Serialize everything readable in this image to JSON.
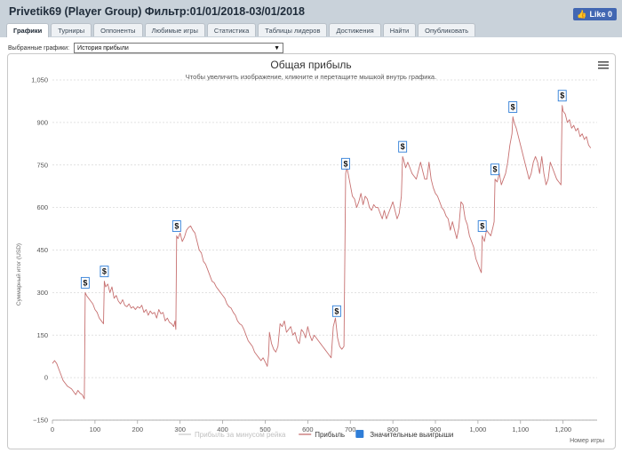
{
  "header": {
    "title": "Privetik69 (Player Group) Фильтр:01/01/2018-03/01/2018",
    "like_label": "Like 0"
  },
  "tabs": [
    {
      "label": "Графики",
      "active": true
    },
    {
      "label": "Турниры"
    },
    {
      "label": "Оппоненты"
    },
    {
      "label": "Любимые игры"
    },
    {
      "label": "Статистика"
    },
    {
      "label": "Таблицы лидеров"
    },
    {
      "label": "Достижения"
    },
    {
      "label": "Найти"
    },
    {
      "label": "Опубликовать"
    }
  ],
  "selector": {
    "label": "Выбранные графики:",
    "value": "История прибыли"
  },
  "menu_icon": "hamburger-icon",
  "chart_data": {
    "type": "line",
    "title": "Общая прибыль",
    "subtitle": "Чтобы увеличить изображение, кликните и перетащите мышкой внутрь графика.",
    "xlabel": "Номер игры",
    "ylabel": "Суммарный итог (USD)",
    "xlim": [
      0,
      1280
    ],
    "ylim": [
      -150,
      1050
    ],
    "x_ticks": [
      0,
      100,
      200,
      300,
      400,
      500,
      600,
      700,
      800,
      900,
      1000,
      1100,
      1200
    ],
    "y_ticks": [
      -150,
      0,
      150,
      300,
      450,
      600,
      750,
      900,
      1050
    ],
    "y_tick_labels": [
      "−150",
      "0",
      "150",
      "300",
      "450",
      "600",
      "750",
      "900",
      "1,050"
    ],
    "grid": "horizontal dashed",
    "legend": [
      {
        "name": "Прибыль за минусом рейка",
        "color": "#cccccc",
        "type": "line",
        "hidden": true
      },
      {
        "name": "Прибыль",
        "color": "#c77171",
        "type": "line"
      },
      {
        "name": "Значительные выигрыши",
        "color": "#2f7ed8",
        "type": "marker"
      }
    ],
    "series": [
      {
        "name": "Прибыль",
        "color": "#c77171",
        "points": [
          [
            0,
            50
          ],
          [
            5,
            60
          ],
          [
            10,
            50
          ],
          [
            15,
            30
          ],
          [
            20,
            10
          ],
          [
            25,
            -10
          ],
          [
            30,
            -20
          ],
          [
            35,
            -30
          ],
          [
            40,
            -35
          ],
          [
            45,
            -40
          ],
          [
            50,
            -50
          ],
          [
            55,
            -60
          ],
          [
            60,
            -45
          ],
          [
            65,
            -55
          ],
          [
            70,
            -60
          ],
          [
            75,
            -75
          ],
          [
            77,
            300
          ],
          [
            80,
            290
          ],
          [
            85,
            280
          ],
          [
            90,
            270
          ],
          [
            95,
            260
          ],
          [
            100,
            240
          ],
          [
            105,
            230
          ],
          [
            110,
            210
          ],
          [
            115,
            200
          ],
          [
            120,
            190
          ],
          [
            122,
            340
          ],
          [
            125,
            320
          ],
          [
            130,
            330
          ],
          [
            135,
            300
          ],
          [
            140,
            320
          ],
          [
            145,
            280
          ],
          [
            150,
            290
          ],
          [
            155,
            270
          ],
          [
            160,
            260
          ],
          [
            165,
            275
          ],
          [
            170,
            255
          ],
          [
            175,
            250
          ],
          [
            180,
            260
          ],
          [
            185,
            245
          ],
          [
            190,
            250
          ],
          [
            195,
            240
          ],
          [
            200,
            250
          ],
          [
            205,
            245
          ],
          [
            210,
            255
          ],
          [
            215,
            230
          ],
          [
            220,
            240
          ],
          [
            225,
            220
          ],
          [
            230,
            235
          ],
          [
            235,
            225
          ],
          [
            240,
            230
          ],
          [
            245,
            210
          ],
          [
            250,
            240
          ],
          [
            255,
            225
          ],
          [
            260,
            230
          ],
          [
            265,
            200
          ],
          [
            270,
            210
          ],
          [
            275,
            195
          ],
          [
            280,
            190
          ],
          [
            285,
            180
          ],
          [
            288,
            200
          ],
          [
            290,
            170
          ],
          [
            292,
            500
          ],
          [
            295,
            490
          ],
          [
            300,
            510
          ],
          [
            305,
            480
          ],
          [
            310,
            495
          ],
          [
            315,
            520
          ],
          [
            320,
            530
          ],
          [
            325,
            535
          ],
          [
            330,
            520
          ],
          [
            335,
            510
          ],
          [
            340,
            480
          ],
          [
            345,
            450
          ],
          [
            350,
            440
          ],
          [
            355,
            410
          ],
          [
            360,
            400
          ],
          [
            365,
            380
          ],
          [
            370,
            360
          ],
          [
            375,
            340
          ],
          [
            380,
            335
          ],
          [
            385,
            320
          ],
          [
            390,
            310
          ],
          [
            395,
            300
          ],
          [
            400,
            290
          ],
          [
            405,
            280
          ],
          [
            410,
            260
          ],
          [
            415,
            250
          ],
          [
            420,
            245
          ],
          [
            425,
            230
          ],
          [
            430,
            220
          ],
          [
            435,
            200
          ],
          [
            440,
            190
          ],
          [
            445,
            185
          ],
          [
            450,
            170
          ],
          [
            455,
            150
          ],
          [
            460,
            130
          ],
          [
            465,
            120
          ],
          [
            470,
            110
          ],
          [
            475,
            90
          ],
          [
            480,
            80
          ],
          [
            485,
            70
          ],
          [
            490,
            60
          ],
          [
            495,
            70
          ],
          [
            500,
            55
          ],
          [
            505,
            40
          ],
          [
            508,
            80
          ],
          [
            510,
            160
          ],
          [
            515,
            120
          ],
          [
            520,
            100
          ],
          [
            525,
            90
          ],
          [
            530,
            110
          ],
          [
            535,
            190
          ],
          [
            540,
            180
          ],
          [
            545,
            200
          ],
          [
            550,
            160
          ],
          [
            555,
            170
          ],
          [
            560,
            180
          ],
          [
            565,
            150
          ],
          [
            570,
            160
          ],
          [
            575,
            130
          ],
          [
            580,
            120
          ],
          [
            585,
            170
          ],
          [
            590,
            160
          ],
          [
            595,
            140
          ],
          [
            600,
            180
          ],
          [
            605,
            150
          ],
          [
            610,
            130
          ],
          [
            615,
            150
          ],
          [
            620,
            140
          ],
          [
            625,
            130
          ],
          [
            630,
            120
          ],
          [
            635,
            110
          ],
          [
            640,
            100
          ],
          [
            645,
            90
          ],
          [
            650,
            80
          ],
          [
            655,
            70
          ],
          [
            660,
            180
          ],
          [
            665,
            210
          ],
          [
            670,
            140
          ],
          [
            675,
            110
          ],
          [
            680,
            100
          ],
          [
            685,
            110
          ],
          [
            689,
            720
          ],
          [
            692,
            740
          ],
          [
            695,
            720
          ],
          [
            700,
            680
          ],
          [
            705,
            640
          ],
          [
            710,
            630
          ],
          [
            715,
            600
          ],
          [
            720,
            620
          ],
          [
            725,
            650
          ],
          [
            730,
            610
          ],
          [
            735,
            640
          ],
          [
            740,
            630
          ],
          [
            745,
            600
          ],
          [
            750,
            590
          ],
          [
            755,
            610
          ],
          [
            760,
            600
          ],
          [
            765,
            600
          ],
          [
            770,
            580
          ],
          [
            775,
            560
          ],
          [
            780,
            590
          ],
          [
            785,
            560
          ],
          [
            790,
            580
          ],
          [
            795,
            600
          ],
          [
            800,
            620
          ],
          [
            805,
            590
          ],
          [
            810,
            560
          ],
          [
            815,
            580
          ],
          [
            820,
            640
          ],
          [
            823,
            780
          ],
          [
            825,
            770
          ],
          [
            830,
            740
          ],
          [
            835,
            760
          ],
          [
            840,
            740
          ],
          [
            845,
            720
          ],
          [
            850,
            710
          ],
          [
            855,
            700
          ],
          [
            860,
            730
          ],
          [
            865,
            760
          ],
          [
            870,
            730
          ],
          [
            875,
            700
          ],
          [
            880,
            700
          ],
          [
            885,
            760
          ],
          [
            890,
            700
          ],
          [
            895,
            670
          ],
          [
            900,
            650
          ],
          [
            905,
            640
          ],
          [
            910,
            620
          ],
          [
            915,
            600
          ],
          [
            920,
            590
          ],
          [
            925,
            570
          ],
          [
            930,
            560
          ],
          [
            935,
            520
          ],
          [
            940,
            550
          ],
          [
            945,
            520
          ],
          [
            950,
            490
          ],
          [
            955,
            530
          ],
          [
            960,
            620
          ],
          [
            965,
            610
          ],
          [
            970,
            560
          ],
          [
            975,
            540
          ],
          [
            980,
            500
          ],
          [
            985,
            480
          ],
          [
            990,
            460
          ],
          [
            995,
            420
          ],
          [
            1000,
            400
          ],
          [
            1005,
            380
          ],
          [
            1008,
            370
          ],
          [
            1010,
            500
          ],
          [
            1015,
            480
          ],
          [
            1020,
            520
          ],
          [
            1025,
            510
          ],
          [
            1030,
            500
          ],
          [
            1035,
            530
          ],
          [
            1038,
            550
          ],
          [
            1040,
            700
          ],
          [
            1045,
            690
          ],
          [
            1050,
            720
          ],
          [
            1055,
            680
          ],
          [
            1060,
            700
          ],
          [
            1065,
            720
          ],
          [
            1070,
            760
          ],
          [
            1075,
            820
          ],
          [
            1080,
            860
          ],
          [
            1082,
            920
          ],
          [
            1085,
            900
          ],
          [
            1090,
            880
          ],
          [
            1095,
            850
          ],
          [
            1100,
            820
          ],
          [
            1105,
            790
          ],
          [
            1110,
            760
          ],
          [
            1115,
            730
          ],
          [
            1120,
            700
          ],
          [
            1125,
            720
          ],
          [
            1130,
            760
          ],
          [
            1135,
            780
          ],
          [
            1140,
            760
          ],
          [
            1145,
            720
          ],
          [
            1150,
            780
          ],
          [
            1155,
            720
          ],
          [
            1160,
            680
          ],
          [
            1165,
            700
          ],
          [
            1170,
            760
          ],
          [
            1175,
            740
          ],
          [
            1180,
            720
          ],
          [
            1185,
            700
          ],
          [
            1190,
            690
          ],
          [
            1195,
            680
          ],
          [
            1198,
            960
          ],
          [
            1200,
            940
          ],
          [
            1205,
            930
          ],
          [
            1210,
            900
          ],
          [
            1215,
            910
          ],
          [
            1220,
            880
          ],
          [
            1225,
            890
          ],
          [
            1230,
            870
          ],
          [
            1235,
            880
          ],
          [
            1240,
            850
          ],
          [
            1245,
            860
          ],
          [
            1250,
            840
          ],
          [
            1255,
            850
          ],
          [
            1260,
            820
          ],
          [
            1265,
            810
          ]
        ]
      }
    ],
    "markers": [
      {
        "x": 77,
        "y": 300,
        "label": "$"
      },
      {
        "x": 122,
        "y": 340,
        "label": "$"
      },
      {
        "x": 292,
        "y": 500,
        "label": "$"
      },
      {
        "x": 668,
        "y": 200,
        "label": "$"
      },
      {
        "x": 689,
        "y": 720,
        "label": "$"
      },
      {
        "x": 823,
        "y": 780,
        "label": "$"
      },
      {
        "x": 1010,
        "y": 500,
        "label": "$"
      },
      {
        "x": 1040,
        "y": 700,
        "label": "$"
      },
      {
        "x": 1082,
        "y": 920,
        "label": "$"
      },
      {
        "x": 1198,
        "y": 960,
        "label": "$"
      }
    ]
  }
}
